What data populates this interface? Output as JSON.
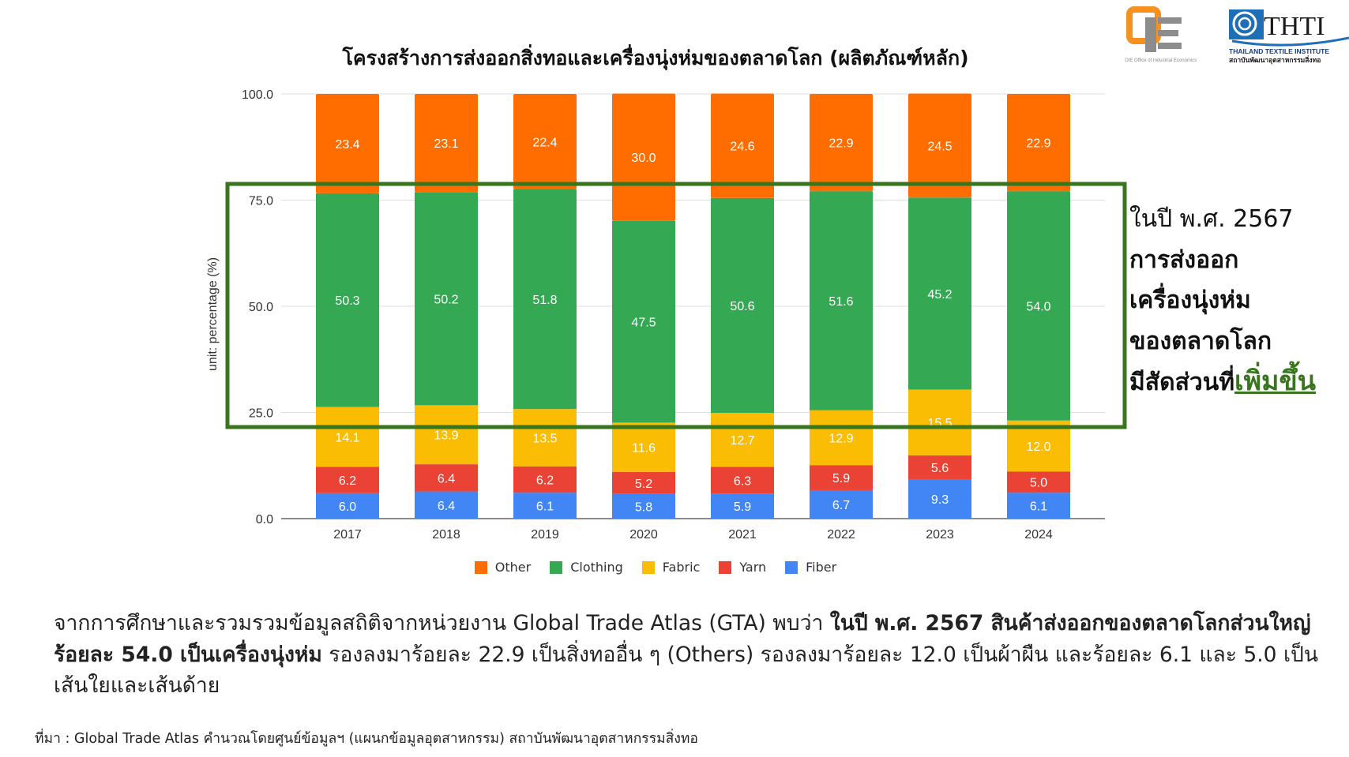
{
  "header": {
    "logo1_text": "OIE Office of Industrial Economics",
    "logo2_text": "THTI",
    "logo2_subtitle": "THAILAND TEXTILE INSTITUTE",
    "logo2_thai": "สถาบันพัฒนาอุตสาหกรรมสิ่งทอ"
  },
  "chart_data": {
    "type": "bar",
    "stacked": true,
    "title": "โครงสร้างการส่งออกสิ่งทอและเครื่องนุ่งห่มของตลาดโลก (ผลิตภัณฑ์หลัก)",
    "xlabel": "",
    "ylabel": "unit: percentage (%)",
    "ylim": [
      0,
      100
    ],
    "yticks": [
      "0.0",
      "25.0",
      "50.0",
      "75.0",
      "100.0"
    ],
    "grid": true,
    "legend_position": "bottom",
    "categories": [
      "2017",
      "2018",
      "2019",
      "2020",
      "2021",
      "2022",
      "2023",
      "2024"
    ],
    "series": [
      {
        "name": "Fiber",
        "color": "#4285f4",
        "values": [
          6.0,
          6.4,
          6.1,
          5.8,
          5.9,
          6.7,
          9.3,
          6.1
        ]
      },
      {
        "name": "Yarn",
        "color": "#ea4335",
        "values": [
          6.2,
          6.4,
          6.2,
          5.2,
          6.3,
          5.9,
          5.6,
          5.0
        ]
      },
      {
        "name": "Fabric",
        "color": "#fbbc04",
        "values": [
          14.1,
          13.9,
          13.5,
          11.6,
          12.7,
          12.9,
          15.5,
          12.0
        ]
      },
      {
        "name": "Clothing",
        "color": "#34a853",
        "values": [
          50.3,
          50.2,
          51.8,
          47.5,
          50.6,
          51.6,
          45.2,
          54.0
        ]
      },
      {
        "name": "Other",
        "color": "#ff6d01",
        "values": [
          23.4,
          23.1,
          22.4,
          30.0,
          24.6,
          22.9,
          24.5,
          22.9
        ]
      }
    ],
    "legend_order": [
      "Other",
      "Clothing",
      "Fabric",
      "Yarn",
      "Fiber"
    ],
    "highlight_box_color": "#38761d"
  },
  "callout": {
    "line1": "ในปี พ.ศ. 2567",
    "line2": "การส่งออก",
    "line3": "เครื่องนุ่งห่ม",
    "line4": "ของตลาดโลก",
    "line5a": "มีสัดส่วนที่",
    "line5b": "เพิ่มขึ้น"
  },
  "summary": {
    "s1": "จากการศึกษาและรวมรวมข้อมูลสถิติจากหน่วยงาน Global Trade Atlas (GTA) พบว่า ",
    "s2": "ในปี พ.ศ. 2567 สินค้าส่งออกของตลาดโลกส่วนใหญ่ร้อยละ 54.0 เป็นเครื่องนุ่งห่ม",
    "s3": " รองลงมาร้อยละ 22.9 เป็นสิ่งทออื่น ๆ (Others) รองลงมาร้อยละ 12.0 เป็นผ้าผืน และร้อยละ 6.1 และ 5.0 เป็นเส้นใยและเส้นด้าย"
  },
  "source": "ที่มา : Global Trade Atlas คำนวณโดยศูนย์ข้อมูลฯ (แผนกข้อมูลอุตสาหกรรม) สถาบันพัฒนาอุตสาหกรรมสิ่งทอ"
}
